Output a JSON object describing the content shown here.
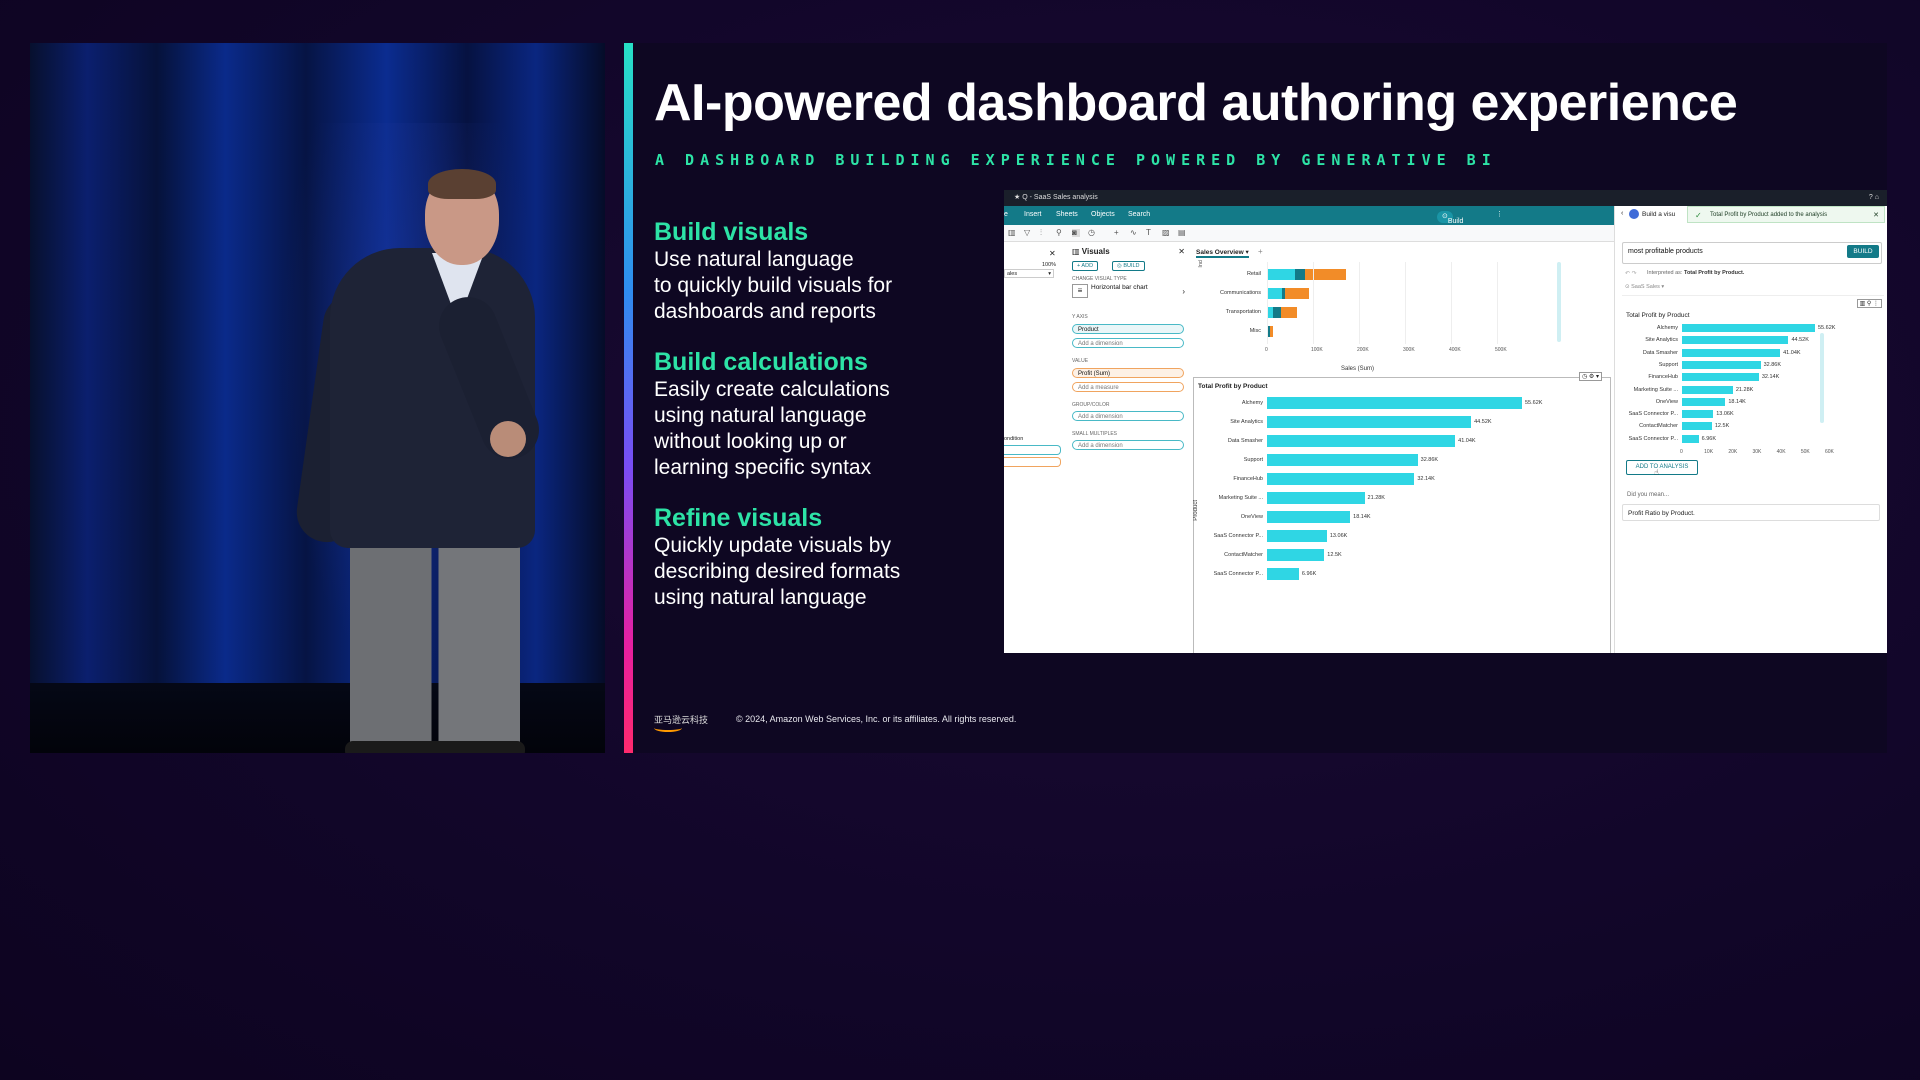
{
  "slide": {
    "title": "AI-powered dashboard authoring experience",
    "subtitle": "A DASHBOARD BUILDING EXPERIENCE POWERED BY GENERATIVE BI",
    "features": [
      {
        "heading": "Build visuals",
        "lines": [
          "Use natural language",
          "to quickly build visuals for",
          "dashboards and reports"
        ]
      },
      {
        "heading": "Build calculations",
        "lines": [
          "Easily create calculations",
          "using natural language",
          "without looking up or",
          "learning specific syntax"
        ]
      },
      {
        "heading": "Refine visuals",
        "lines": [
          "Quickly update visuals by",
          "describing desired formats",
          "using natural language"
        ]
      }
    ],
    "footer_logo": "亚马逊云科技",
    "copyright": "© 2024, Amazon Web Services, Inc. or its affiliates. All rights reserved."
  },
  "app": {
    "window_title": "Q - SaaS Sales analysis",
    "menu": [
      "e",
      "Insert",
      "Sheets",
      "Objects",
      "Search"
    ],
    "build_visual": "Build visual",
    "left_strip": {
      "zoom": "100%",
      "dropdown": "ales",
      "condition": "ondition"
    },
    "visuals_panel": {
      "title": "Visuals",
      "add": "+ ADD",
      "build": "BUILD",
      "change_type_label": "CHANGE VISUAL TYPE",
      "visual_type": "Horizontal bar chart",
      "y_axis_label": "Y AXIS",
      "y_axis_value": "Product",
      "add_dimension": "Add a dimension",
      "value_label": "VALUE",
      "value_value": "Profit (Sum)",
      "add_measure": "Add a measure",
      "group_label": "GROUP/COLOR",
      "small_multiples_label": "SMALL MULTIPLES"
    },
    "canvas": {
      "sheet_tab": "Sales Overview",
      "top_chart": {
        "y_label": "Ind",
        "x_label": "Sales (Sum)",
        "categories": [
          "Retail",
          "Communications",
          "Transportation",
          "Misc"
        ],
        "ticks": [
          "0",
          "100K",
          "200K",
          "300K",
          "400K",
          "500K"
        ],
        "segments": [
          [
            65,
            25,
            95
          ],
          [
            35,
            8,
            55
          ],
          [
            15,
            18,
            38
          ],
          [
            2,
            5,
            6
          ]
        ],
        "colors": [
          "#2fd6e4",
          "#137a88",
          "#f28c28"
        ]
      },
      "main_chart": {
        "title": "Total Profit by Product",
        "y_label": "Product",
        "bars": [
          {
            "label": "Alchemy",
            "value": 55.62,
            "text": "55.62K"
          },
          {
            "label": "Site Analytics",
            "value": 44.52,
            "text": "44.52K"
          },
          {
            "label": "Data Smasher",
            "value": 41.04,
            "text": "41.04K"
          },
          {
            "label": "Support",
            "value": 32.86,
            "text": "32.86K"
          },
          {
            "label": "FinanceHub",
            "value": 32.14,
            "text": "32.14K"
          },
          {
            "label": "Marketing Suite ...",
            "value": 21.28,
            "text": "21.28K"
          },
          {
            "label": "OneView",
            "value": 18.14,
            "text": "18.14K"
          },
          {
            "label": "SaaS Connector P...",
            "value": 13.06,
            "text": "13.06K"
          },
          {
            "label": "ContactMatcher",
            "value": 12.5,
            "text": "12.5K"
          },
          {
            "label": "SaaS Connector P...",
            "value": 6.96,
            "text": "6.96K"
          }
        ]
      }
    },
    "q_panel": {
      "header": "Build a visu",
      "toast": "Total Profit by Product added to the analysis",
      "query": "most profitable products",
      "build_button": "BUILD",
      "interpreted_prefix": "Interpreted as:",
      "interpreted_value": "Total Profit by Product.",
      "dataset": "SaaS Sales",
      "chart_title": "Total Profit by Product",
      "bars": [
        {
          "label": "Alchemy",
          "value": 55.62,
          "text": "55.62K"
        },
        {
          "label": "Site Analytics",
          "value": 44.52,
          "text": "44.52K"
        },
        {
          "label": "Data Smasher",
          "value": 41.04,
          "text": "41.04K"
        },
        {
          "label": "Support",
          "value": 32.86,
          "text": "32.86K"
        },
        {
          "label": "FinanceHub",
          "value": 32.14,
          "text": "32.14K"
        },
        {
          "label": "Marketing Suite ...",
          "value": 21.28,
          "text": "21.28K"
        },
        {
          "label": "OneView",
          "value": 18.14,
          "text": "18.14K"
        },
        {
          "label": "SaaS Connector P...",
          "value": 13.06,
          "text": "13.06K"
        },
        {
          "label": "ContactMatcher",
          "value": 12.5,
          "text": "12.5K"
        },
        {
          "label": "SaaS Connector P...",
          "value": 6.96,
          "text": "6.96K"
        }
      ],
      "ticks": [
        "0",
        "10K",
        "20K",
        "30K",
        "40K",
        "50K",
        "60K"
      ],
      "add_to_analysis": "ADD TO ANALYSIS",
      "did_you_mean": "Did you mean...",
      "suggestion": "Profit Ratio by Product."
    }
  },
  "colors": {
    "accent_green": "#2de3a6",
    "teal": "#137a88",
    "bar_cyan": "#2fd6e4",
    "orange": "#f28c28"
  }
}
